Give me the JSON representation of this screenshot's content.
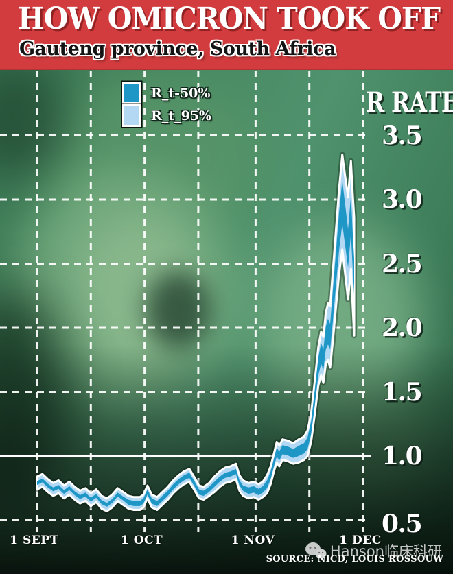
{
  "banner": {
    "title": "HOW OMICRON TOOK OFF",
    "subtitle": "Gauteng province, South Africa",
    "background_color": "#d23c3e"
  },
  "legend": {
    "items": [
      {
        "label": "R_t-50%",
        "color": "#1e97c6"
      },
      {
        "label": "R_t_95%",
        "color": "#b3d8f3"
      }
    ]
  },
  "footer": {
    "source": "SOURCE: NICD, LOUIS ROSSOUW",
    "watermark": "Hanson临床科研"
  },
  "colors": {
    "banner_red": "#d23c3e",
    "band_50": "#1e97c6",
    "band_95": "#b3d8f3",
    "grid_white": "#ffffff",
    "background_green": "#4a8c68"
  },
  "chart_data": {
    "type": "area",
    "title": "HOW OMICRON TOOK OFF",
    "subtitle": "Gauteng province, South Africa",
    "y_axis": {
      "title": "R RATE",
      "tick_labels": [
        "3.5",
        "3.0",
        "2.5",
        "2.0",
        "1.5",
        "1.0",
        "0.5"
      ],
      "tick_values": [
        3.5,
        3.0,
        2.5,
        2.0,
        1.5,
        1.0,
        0.5
      ],
      "grid_values": [
        3.5,
        3.0,
        2.5,
        2.0,
        1.5,
        0.5
      ],
      "reference_line": 1.0,
      "range": [
        0.4,
        4.0
      ],
      "grid": "dashed-white"
    },
    "x_axis": {
      "tick_labels": [
        "1 SEPT",
        "1 OCT",
        "1 NOV",
        "1 DEC"
      ],
      "tick_days": [
        0,
        30,
        61,
        91
      ],
      "grid_days": [
        0,
        15,
        30,
        45,
        61,
        76,
        91
      ],
      "grid": "dashed-white"
    },
    "series": [
      {
        "name": "R_t-50%",
        "role": "50% credible interval band",
        "color": "#1e97c6"
      },
      {
        "name": "R_t_95%",
        "role": "95% credible interval band",
        "color": "#b3d8f3"
      }
    ],
    "points_format": [
      "day_from_1_sept",
      "median_R",
      "halfwidth_50pct",
      "halfwidth_95pct"
    ],
    "points": [
      [
        0,
        0.79,
        0.015,
        0.05
      ],
      [
        1.5,
        0.81,
        0.015,
        0.05
      ],
      [
        3,
        0.77,
        0.015,
        0.05
      ],
      [
        4.5,
        0.74,
        0.015,
        0.05
      ],
      [
        6,
        0.76,
        0.015,
        0.05
      ],
      [
        7.5,
        0.72,
        0.015,
        0.05
      ],
      [
        9,
        0.75,
        0.015,
        0.05
      ],
      [
        10.5,
        0.71,
        0.015,
        0.05
      ],
      [
        12,
        0.68,
        0.015,
        0.05
      ],
      [
        13.5,
        0.7,
        0.015,
        0.05
      ],
      [
        15,
        0.66,
        0.015,
        0.05
      ],
      [
        16.5,
        0.69,
        0.015,
        0.05
      ],
      [
        18,
        0.64,
        0.015,
        0.05
      ],
      [
        19.5,
        0.62,
        0.015,
        0.05
      ],
      [
        21,
        0.65,
        0.015,
        0.05
      ],
      [
        22.5,
        0.7,
        0.015,
        0.05
      ],
      [
        24,
        0.67,
        0.015,
        0.05
      ],
      [
        25.5,
        0.64,
        0.02,
        0.05
      ],
      [
        27,
        0.63,
        0.02,
        0.05
      ],
      [
        28.7,
        0.63,
        0.02,
        0.05
      ],
      [
        29.7,
        0.65,
        0.02,
        0.05
      ],
      [
        30.8,
        0.72,
        0.02,
        0.05
      ],
      [
        32,
        0.65,
        0.02,
        0.05
      ],
      [
        33.5,
        0.63,
        0.02,
        0.05
      ],
      [
        35,
        0.67,
        0.02,
        0.05
      ],
      [
        36.5,
        0.71,
        0.02,
        0.05
      ],
      [
        38,
        0.76,
        0.02,
        0.05
      ],
      [
        39.5,
        0.8,
        0.02,
        0.05
      ],
      [
        41,
        0.83,
        0.02,
        0.05
      ],
      [
        42.5,
        0.85,
        0.02,
        0.05
      ],
      [
        44,
        0.78,
        0.02,
        0.05
      ],
      [
        45.2,
        0.72,
        0.02,
        0.05
      ],
      [
        46.5,
        0.71,
        0.02,
        0.05
      ],
      [
        48,
        0.74,
        0.02,
        0.05
      ],
      [
        49.5,
        0.78,
        0.02,
        0.06
      ],
      [
        51,
        0.82,
        0.02,
        0.06
      ],
      [
        52.5,
        0.85,
        0.02,
        0.06
      ],
      [
        54,
        0.86,
        0.02,
        0.06
      ],
      [
        55.5,
        0.88,
        0.02,
        0.06
      ],
      [
        56.5,
        0.79,
        0.02,
        0.06
      ],
      [
        57.5,
        0.75,
        0.02,
        0.06
      ],
      [
        59,
        0.73,
        0.025,
        0.06
      ],
      [
        60.5,
        0.74,
        0.025,
        0.06
      ],
      [
        61.8,
        0.72,
        0.025,
        0.06
      ],
      [
        63,
        0.74,
        0.025,
        0.06
      ],
      [
        64.2,
        0.78,
        0.03,
        0.07
      ],
      [
        65.2,
        0.85,
        0.03,
        0.07
      ],
      [
        66.2,
        0.96,
        0.03,
        0.07
      ],
      [
        66.9,
        1.03,
        0.035,
        0.08
      ],
      [
        67.6,
        1.0,
        0.035,
        0.08
      ],
      [
        68.5,
        1.05,
        0.035,
        0.08
      ],
      [
        70,
        1.04,
        0.035,
        0.08
      ],
      [
        71.5,
        1.02,
        0.035,
        0.08
      ],
      [
        73,
        1.04,
        0.04,
        0.09
      ],
      [
        74.5,
        1.06,
        0.04,
        0.09
      ],
      [
        75.5,
        1.1,
        0.045,
        0.1
      ],
      [
        76.5,
        1.22,
        0.05,
        0.11
      ],
      [
        77.5,
        1.45,
        0.06,
        0.13
      ],
      [
        78.5,
        1.7,
        0.07,
        0.15
      ],
      [
        79.3,
        1.8,
        0.08,
        0.17
      ],
      [
        79.9,
        1.75,
        0.08,
        0.18
      ],
      [
        80.6,
        1.92,
        0.09,
        0.2
      ],
      [
        81.2,
        1.97,
        0.1,
        0.22
      ],
      [
        81.8,
        1.93,
        0.1,
        0.24
      ],
      [
        82.5,
        2.15,
        0.12,
        0.27
      ],
      [
        83.4,
        2.45,
        0.13,
        0.3
      ],
      [
        84.3,
        2.75,
        0.15,
        0.33
      ],
      [
        85.2,
        2.98,
        0.17,
        0.37
      ],
      [
        86,
        2.8,
        0.16,
        0.38
      ],
      [
        86.8,
        2.62,
        0.15,
        0.4
      ],
      [
        87.6,
        2.88,
        0.15,
        0.42
      ],
      [
        88.1,
        2.6,
        0.14,
        0.44
      ],
      [
        88.5,
        2.4,
        0.14,
        0.46
      ]
    ]
  }
}
